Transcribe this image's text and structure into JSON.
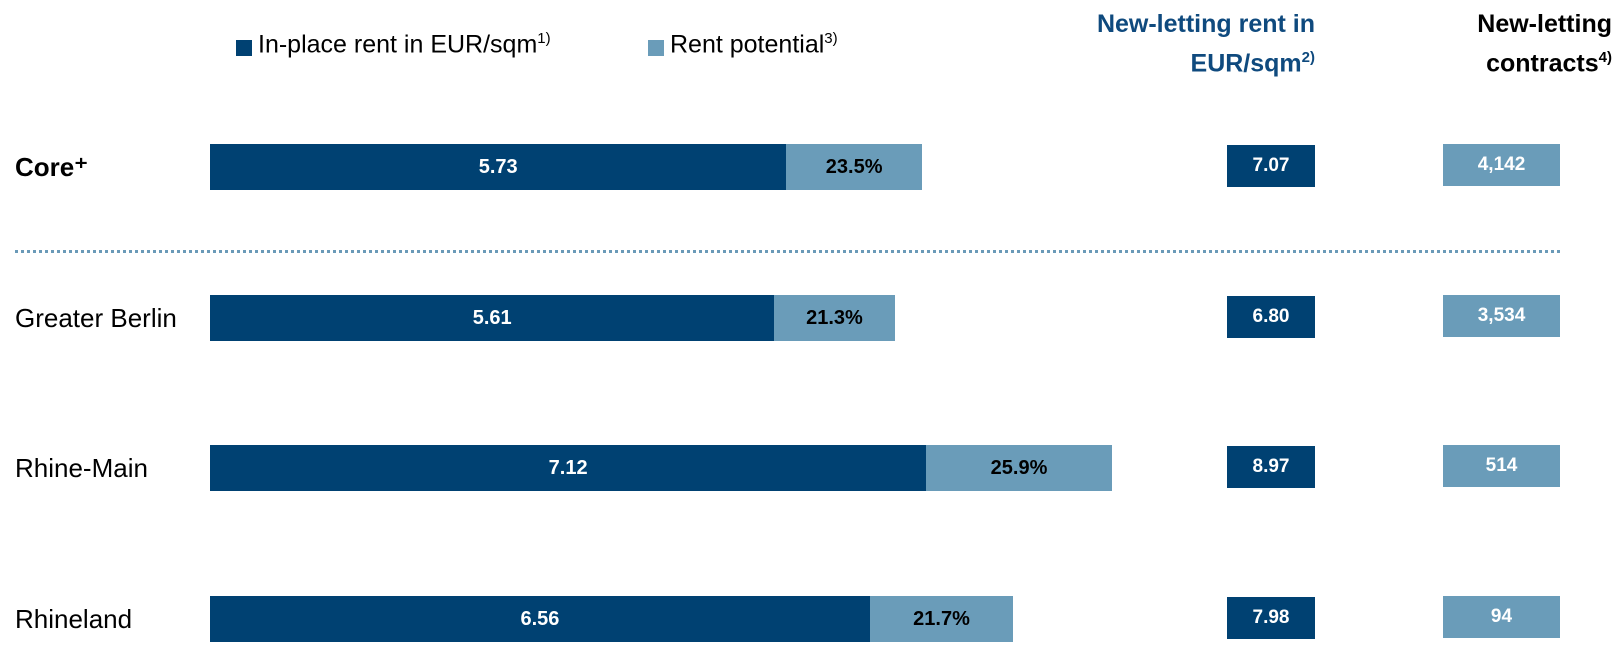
{
  "chart_data": {
    "type": "bar",
    "orientation": "horizontal",
    "stacked": true,
    "categories": [
      "Core⁺",
      "Greater Berlin",
      "Rhine-Main",
      "Rhineland"
    ],
    "series": [
      {
        "name": "In-place rent in EUR/sqm",
        "footnote": "1)",
        "color": "#004172",
        "values": [
          5.73,
          5.61,
          7.12,
          6.56
        ]
      },
      {
        "name": "Rent potential",
        "footnote": "3)",
        "color": "#6a9cb9",
        "values": [
          23.5,
          21.3,
          25.9,
          21.7
        ],
        "value_labels": [
          "23.5%",
          "21.3%",
          "25.9%",
          "21.7%"
        ]
      }
    ],
    "new_letting_rent": {
      "title": "New-letting rent in EUR/sqm",
      "footnote": "2)",
      "color": "#004172",
      "values": [
        7.07,
        6.8,
        8.97,
        7.98
      ],
      "value_labels": [
        "7.07",
        "6.80",
        "8.97",
        "7.98"
      ]
    },
    "new_letting_contracts": {
      "title": "New-letting contracts",
      "footnote": "4)",
      "color": "#6a9cb9",
      "values": [
        4142,
        3534,
        514,
        94
      ],
      "value_labels": [
        "4,142",
        "3,534",
        "514",
        "94"
      ]
    }
  }
}
